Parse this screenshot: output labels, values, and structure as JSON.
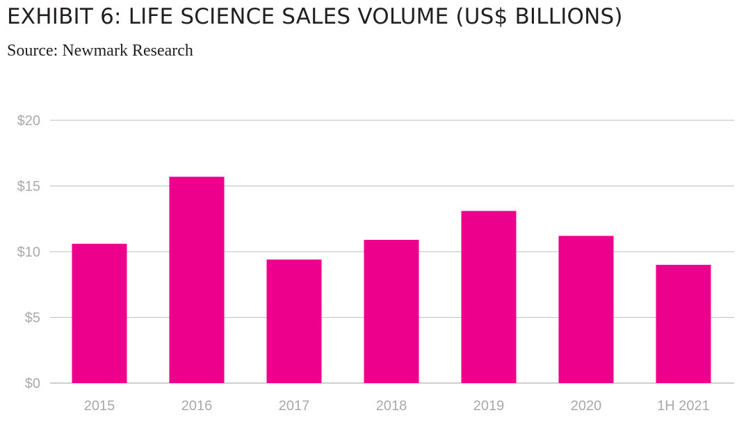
{
  "title": "EXHIBIT 6: LIFE SCIENCE SALES VOLUME (US$ BILLIONS)",
  "subtitle": "Source: Newmark Research",
  "colors": {
    "bar": "#ec008c",
    "gridline": "#bcbec0",
    "axis_text": "#a7a9ac",
    "title_text": "#231f20"
  },
  "chart_data": {
    "type": "bar",
    "categories": [
      "2015",
      "2016",
      "2017",
      "2018",
      "2019",
      "2020",
      "1H 2021"
    ],
    "values": [
      10.6,
      15.7,
      9.4,
      10.9,
      13.1,
      11.2,
      9.0
    ],
    "ylim": [
      0,
      20
    ],
    "y_ticks": [
      0,
      5,
      10,
      15,
      20
    ],
    "y_tick_labels": [
      "$0",
      "$5",
      "$10",
      "$15",
      "$20"
    ],
    "grid": true,
    "legend": "none"
  }
}
